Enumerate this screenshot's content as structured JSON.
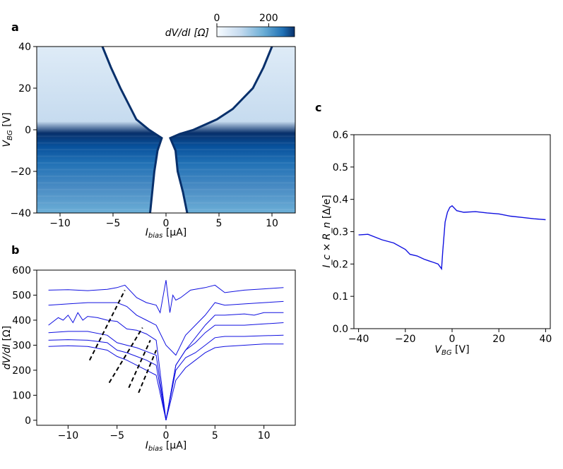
{
  "panels": {
    "a": "a",
    "b": "b",
    "c": "c"
  },
  "chart_data": [
    {
      "panel": "a",
      "type": "heatmap",
      "xlabel": {
        "main": "I",
        "sub": "bias",
        "unit": " [μA]"
      },
      "ylabel": {
        "main": "V",
        "sub": "BG",
        "unit": " [V]"
      },
      "xlim": [
        -12.2,
        12.2
      ],
      "ylim": [
        -40,
        40
      ],
      "xticks": [
        -10,
        -5,
        0,
        5,
        10
      ],
      "xtick_labels": [
        "−10",
        "−5",
        "0",
        "5",
        "10"
      ],
      "yticks": [
        -40,
        -20,
        0,
        20,
        40
      ],
      "ytick_labels": [
        "−40",
        "−20",
        "0",
        "20",
        "40"
      ],
      "colorbar": {
        "label": "dV/dI [Ω]",
        "range": [
          0,
          300
        ],
        "ticks": [
          0,
          200
        ],
        "tick_labels": [
          "0",
          "200"
        ],
        "colormap": "Blues",
        "placement": "top-right"
      },
      "critical_current_boundary": {
        "vbg": [
          40,
          30,
          20,
          10,
          5,
          0,
          -2,
          -4,
          -10,
          -20,
          -30,
          -40
        ],
        "ic_positive": [
          10.0,
          9.2,
          8.2,
          6.3,
          4.8,
          2.6,
          1.3,
          0.4,
          0.9,
          1.1,
          1.6,
          2.0
        ],
        "ic_negative": [
          -6.0,
          -5.2,
          -4.3,
          -3.3,
          -2.8,
          -1.6,
          -1.0,
          -0.4,
          -0.8,
          -1.1,
          -1.3,
          -1.5
        ]
      }
    },
    {
      "panel": "b",
      "type": "line",
      "xlabel": {
        "main": "I",
        "sub": "bias",
        "unit": " [μA]"
      },
      "ylabel": {
        "main": "dV/dI",
        "sub": "",
        "unit": " [Ω]"
      },
      "xlim": [
        -13.2,
        13.2
      ],
      "ylim": [
        -20,
        600
      ],
      "xticks": [
        -10,
        -5,
        0,
        5,
        10
      ],
      "xtick_labels": [
        "−10",
        "−5",
        "0",
        "5",
        "10"
      ],
      "yticks": [
        0,
        100,
        200,
        300,
        400,
        500,
        600
      ],
      "ytick_labels": [
        "0",
        "100",
        "200",
        "300",
        "400",
        "500",
        "600"
      ],
      "series_color": "#1010e0",
      "series": [
        {
          "x": [
            -12,
            -10,
            -8,
            -6,
            -5,
            -4.2,
            -3,
            -2,
            -1,
            -0.6,
            0,
            0.4,
            0.7,
            1,
            1.5,
            2.5,
            4,
            5,
            6,
            8,
            10,
            12
          ],
          "y": [
            520,
            522,
            518,
            523,
            530,
            540,
            490,
            470,
            460,
            430,
            560,
            430,
            500,
            480,
            490,
            520,
            530,
            540,
            510,
            520,
            525,
            530
          ]
        },
        {
          "x": [
            -12,
            -10,
            -8,
            -6,
            -5,
            -4,
            -3,
            -2,
            -1,
            0,
            1,
            2,
            4,
            5,
            6,
            8,
            10,
            12
          ],
          "y": [
            460,
            465,
            470,
            470,
            470,
            455,
            420,
            400,
            380,
            300,
            260,
            340,
            420,
            470,
            460,
            465,
            470,
            475
          ]
        },
        {
          "x": [
            -12,
            -11,
            -10.5,
            -10,
            -9.5,
            -9,
            -8.5,
            -8,
            -7,
            -6,
            -5,
            -4,
            -3,
            -2,
            -1,
            0,
            1,
            2,
            3,
            4,
            5,
            6,
            8,
            9,
            10,
            12
          ],
          "y": [
            380,
            410,
            400,
            420,
            390,
            430,
            400,
            415,
            410,
            400,
            395,
            365,
            360,
            345,
            320,
            0,
            220,
            280,
            330,
            380,
            420,
            420,
            425,
            420,
            430,
            430
          ]
        },
        {
          "x": [
            -12,
            -10,
            -8,
            -6,
            -5,
            -4,
            -3,
            -2,
            -1,
            0,
            1,
            2,
            3,
            4,
            5,
            6,
            8,
            10,
            12
          ],
          "y": [
            350,
            355,
            355,
            340,
            310,
            300,
            290,
            275,
            260,
            0,
            220,
            280,
            310,
            350,
            380,
            380,
            380,
            385,
            390
          ]
        },
        {
          "x": [
            -12,
            -10,
            -8,
            -6,
            -5,
            -4,
            -3,
            -2,
            -1,
            0,
            1,
            2,
            3,
            4,
            5,
            6,
            8,
            10,
            12
          ],
          "y": [
            320,
            322,
            320,
            310,
            280,
            270,
            255,
            240,
            220,
            0,
            200,
            250,
            270,
            300,
            330,
            335,
            335,
            338,
            340
          ]
        },
        {
          "x": [
            -12,
            -10,
            -8,
            -6,
            -5,
            -4,
            -3,
            -2,
            -1,
            0,
            1,
            2,
            3,
            4,
            5,
            6,
            8,
            10,
            12
          ],
          "y": [
            295,
            298,
            295,
            280,
            255,
            240,
            220,
            200,
            180,
            0,
            160,
            210,
            240,
            270,
            290,
            295,
            300,
            305,
            305
          ]
        }
      ],
      "dashed_guides": [
        {
          "x": [
            -7.8,
            -4.2
          ],
          "y": [
            240,
            520
          ]
        },
        {
          "x": [
            -5.8,
            -2.4
          ],
          "y": [
            150,
            370
          ]
        },
        {
          "x": [
            -3.8,
            -1.6
          ],
          "y": [
            130,
            320
          ]
        },
        {
          "x": [
            -2.8,
            -1.0
          ],
          "y": [
            110,
            280
          ]
        }
      ]
    },
    {
      "panel": "c",
      "type": "line",
      "xlabel": {
        "main": "V",
        "sub": "BG",
        "unit": " [V]"
      },
      "ylabel": {
        "main": "I_c × R_n",
        "sub": "",
        "unit": " [Δ/e]"
      },
      "xlim": [
        -42,
        42
      ],
      "ylim": [
        0,
        0.6
      ],
      "xticks": [
        -40,
        -20,
        0,
        20,
        40
      ],
      "xtick_labels": [
        "−40",
        "−20",
        "0",
        "20",
        "40"
      ],
      "yticks": [
        0,
        0.1,
        0.2,
        0.3,
        0.4,
        0.5,
        0.6
      ],
      "ytick_labels": [
        "0.0",
        "0.1",
        "0.2",
        "0.3",
        "0.4",
        "0.5",
        "0.6"
      ],
      "series_color": "#1010e0",
      "series": [
        {
          "x": [
            -40,
            -36,
            -30,
            -25,
            -20,
            -18,
            -15,
            -12,
            -10,
            -8,
            -6,
            -5,
            -4.5,
            -4,
            -3,
            -2,
            -1,
            0,
            2,
            5,
            10,
            15,
            20,
            25,
            30,
            35,
            40
          ],
          "y": [
            0.29,
            0.292,
            0.275,
            0.265,
            0.245,
            0.23,
            0.225,
            0.215,
            0.21,
            0.205,
            0.2,
            0.19,
            0.185,
            0.24,
            0.33,
            0.36,
            0.375,
            0.38,
            0.365,
            0.36,
            0.362,
            0.358,
            0.355,
            0.348,
            0.344,
            0.34,
            0.337
          ]
        }
      ]
    }
  ]
}
